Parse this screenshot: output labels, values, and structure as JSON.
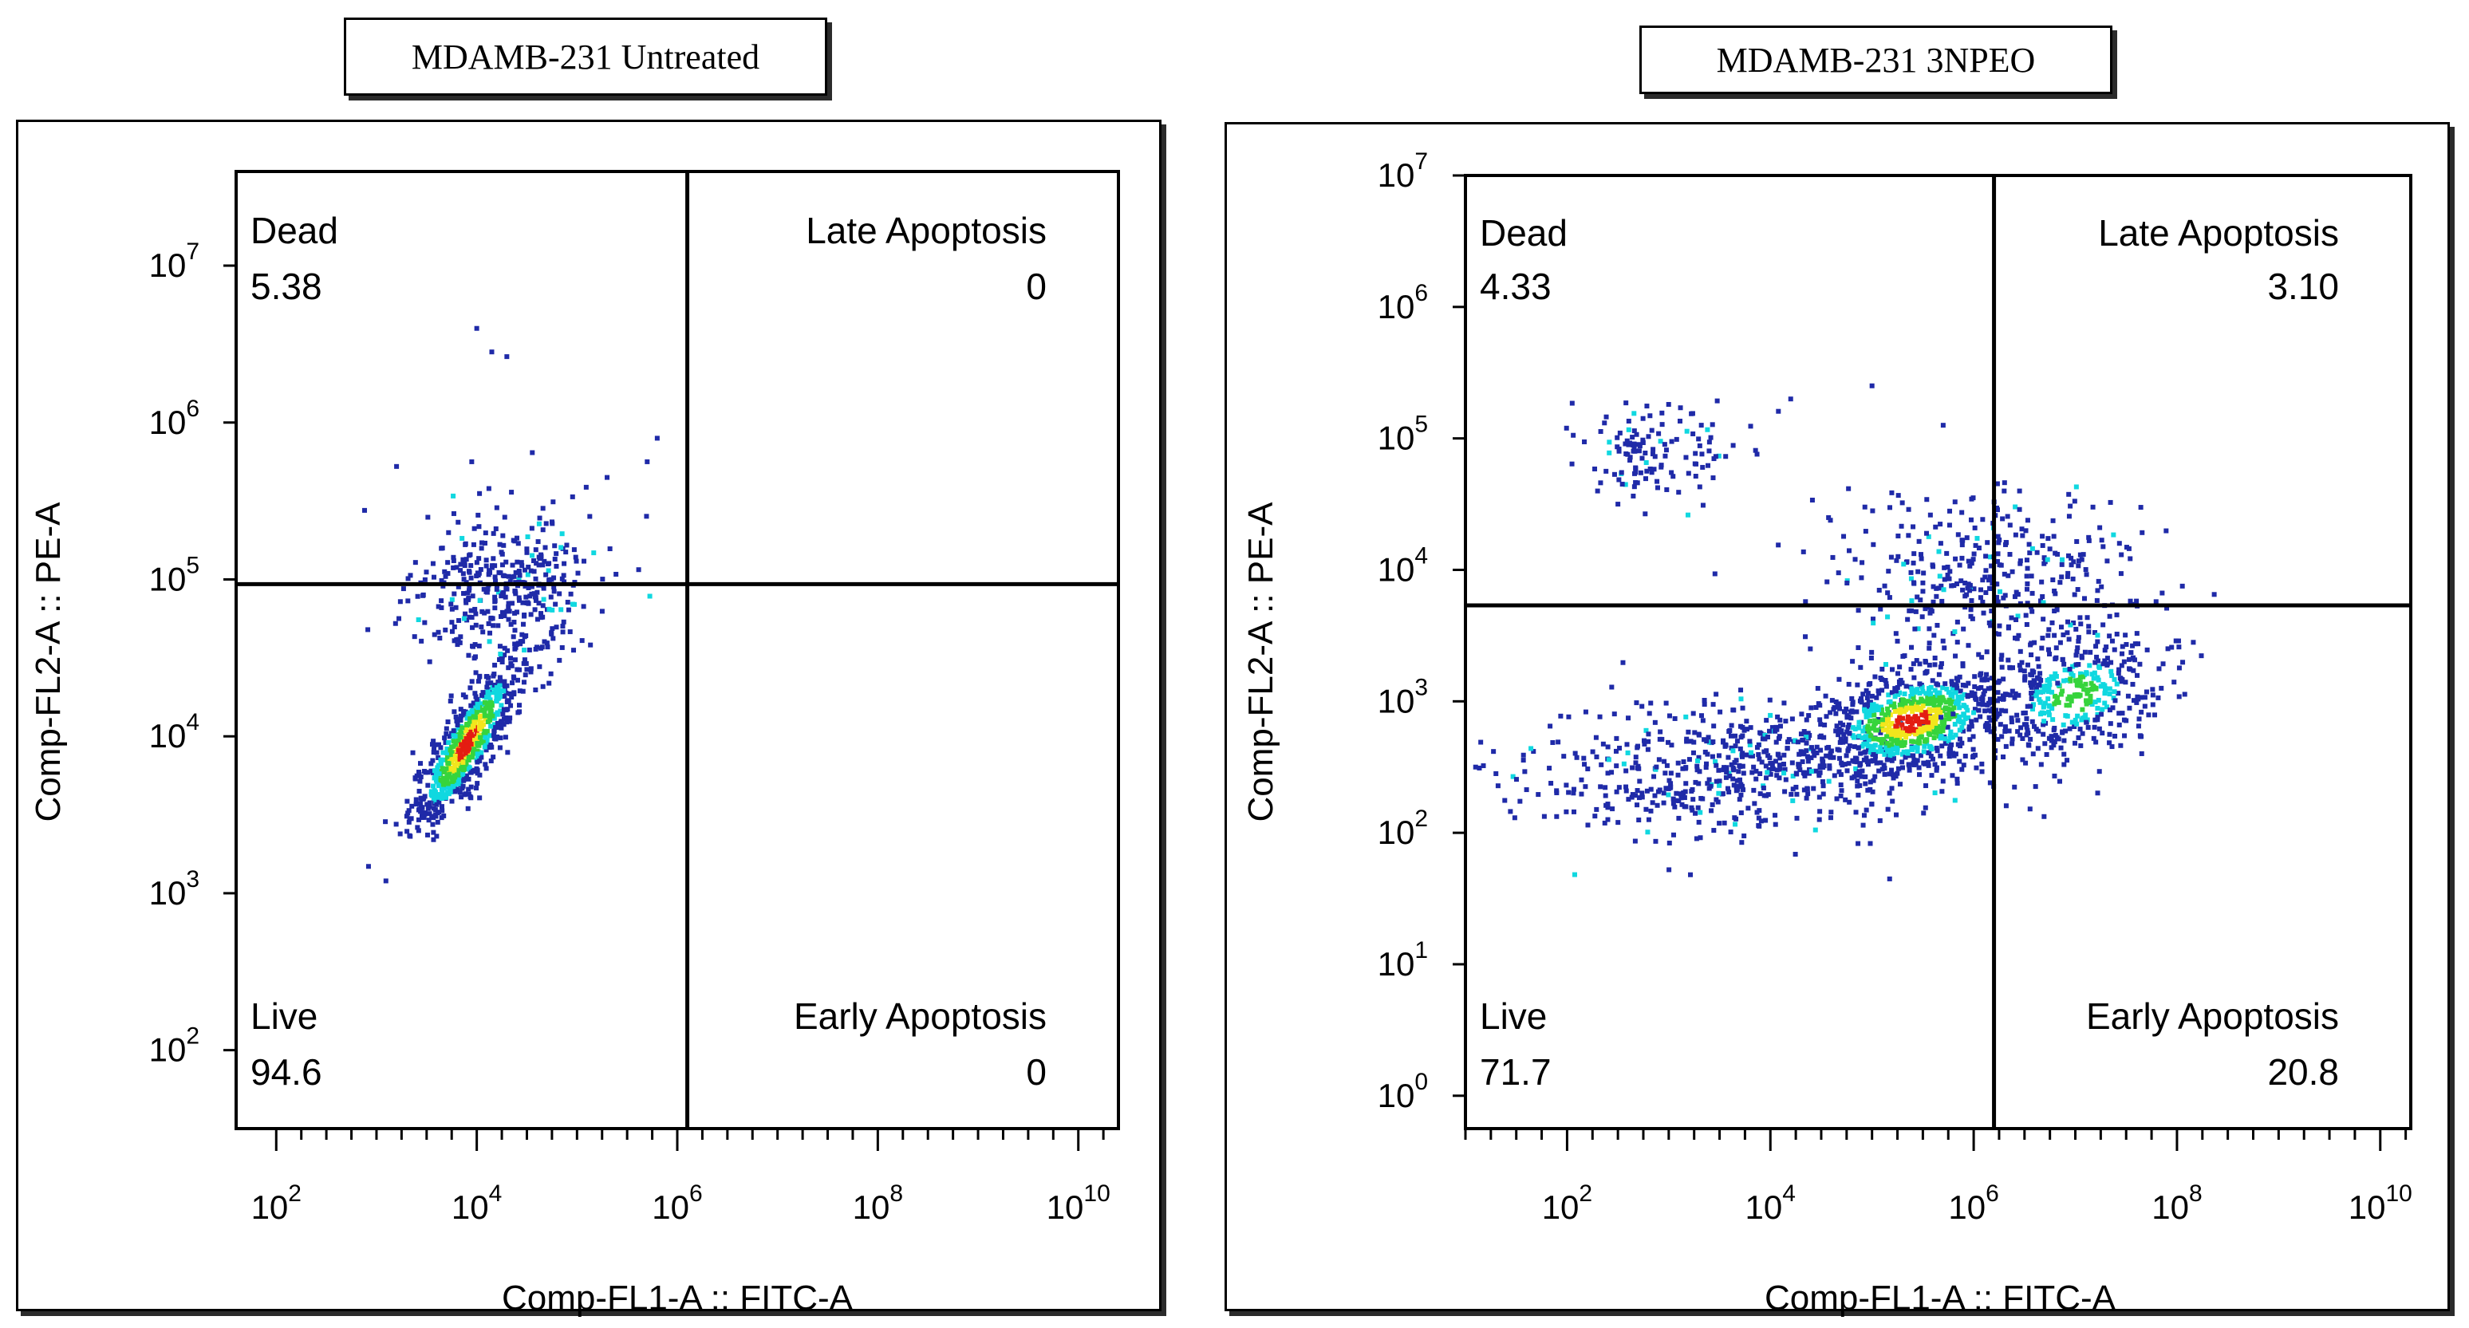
{
  "colors": {
    "axis": "#000000",
    "density_low": "#1f2aa8",
    "density_mid": "#10d8e0",
    "density_mid2": "#36d43c",
    "density_high": "#f2e61d",
    "density_peak": "#e41d12"
  },
  "chart_data": [
    {
      "type": "scatter",
      "title": "MDAMB-231 Untreated",
      "xlabel": "Comp-FL1-A :: FITC-A",
      "ylabel": "Comp-FL2-A :: PE-A",
      "x_scale": "log10",
      "y_scale": "log10",
      "xlim_exp": [
        1.6,
        10.4
      ],
      "ylim_exp": [
        1.5,
        7.6
      ],
      "x_ticks": [
        {
          "exp": 2,
          "base": "10",
          "power": "2"
        },
        {
          "exp": 4,
          "base": "10",
          "power": "4"
        },
        {
          "exp": 6,
          "base": "10",
          "power": "6"
        },
        {
          "exp": 8,
          "base": "10",
          "power": "8"
        },
        {
          "exp": 10,
          "base": "10",
          "power": "10"
        }
      ],
      "y_ticks": [
        {
          "exp": 2,
          "base": "10",
          "power": "2"
        },
        {
          "exp": 3,
          "base": "10",
          "power": "3"
        },
        {
          "exp": 4,
          "base": "10",
          "power": "4"
        },
        {
          "exp": 5,
          "base": "10",
          "power": "5"
        },
        {
          "exp": 6,
          "base": "10",
          "power": "6"
        },
        {
          "exp": 7,
          "base": "10",
          "power": "7"
        }
      ],
      "quadrant_gate": {
        "x_exp": 6.1,
        "y_exp": 4.97
      },
      "quadrants": [
        {
          "name": "Dead",
          "value": "5.38",
          "position": "top-left"
        },
        {
          "name": "Late Apoptosis",
          "value": "0",
          "position": "top-right"
        },
        {
          "name": "Live",
          "value": "94.6",
          "position": "bottom-left"
        },
        {
          "name": "Early Apoptosis",
          "value": "0",
          "position": "bottom-right"
        }
      ],
      "populations": [
        {
          "label": "live cluster",
          "cx_exp": 3.9,
          "cy_exp": 3.95,
          "sx": 0.28,
          "sy": 0.28,
          "rho": 0.85,
          "n": 700,
          "density": "high"
        },
        {
          "label": "dead spread",
          "cx_exp": 4.3,
          "cy_exp": 4.95,
          "sx": 0.45,
          "sy": 0.25,
          "rho": 0.2,
          "n": 380,
          "density": "low"
        }
      ],
      "outliers": [
        {
          "x_exp": 3.2,
          "y_exp": 5.72
        },
        {
          "x_exp": 4.0,
          "y_exp": 6.6
        },
        {
          "x_exp": 4.15,
          "y_exp": 6.45
        },
        {
          "x_exp": 4.3,
          "y_exp": 6.42
        },
        {
          "x_exp": 5.8,
          "y_exp": 5.9
        },
        {
          "x_exp": 5.7,
          "y_exp": 5.75
        },
        {
          "x_exp": 5.3,
          "y_exp": 5.65
        },
        {
          "x_exp": 3.95,
          "y_exp": 5.75
        }
      ]
    },
    {
      "type": "scatter",
      "title": "MDAMB-231 3NPEO",
      "xlabel": "Comp-FL1-A :: FITC-A",
      "ylabel": "Comp-FL2-A :: PE-A",
      "x_scale": "log10",
      "y_scale": "log10",
      "xlim_exp": [
        1.0,
        10.3
      ],
      "ylim_exp": [
        -0.25,
        7.0
      ],
      "x_ticks": [
        {
          "exp": 2,
          "base": "10",
          "power": "2"
        },
        {
          "exp": 4,
          "base": "10",
          "power": "4"
        },
        {
          "exp": 6,
          "base": "10",
          "power": "6"
        },
        {
          "exp": 8,
          "base": "10",
          "power": "8"
        },
        {
          "exp": 10,
          "base": "10",
          "power": "10"
        }
      ],
      "y_ticks": [
        {
          "exp": 0,
          "base": "10",
          "power": "0"
        },
        {
          "exp": 1,
          "base": "10",
          "power": "1"
        },
        {
          "exp": 2,
          "base": "10",
          "power": "2"
        },
        {
          "exp": 3,
          "base": "10",
          "power": "3"
        },
        {
          "exp": 4,
          "base": "10",
          "power": "4"
        },
        {
          "exp": 5,
          "base": "10",
          "power": "5"
        },
        {
          "exp": 6,
          "base": "10",
          "power": "6"
        },
        {
          "exp": 7,
          "base": "10",
          "power": "7"
        }
      ],
      "quadrant_gate": {
        "x_exp": 6.2,
        "y_exp": 3.73
      },
      "quadrants": [
        {
          "name": "Dead",
          "value": "4.33",
          "position": "top-left"
        },
        {
          "name": "Late Apoptosis",
          "value": "3.10",
          "position": "top-right"
        },
        {
          "name": "Live",
          "value": "71.7",
          "position": "bottom-left"
        },
        {
          "name": "Early Apoptosis",
          "value": "20.8",
          "position": "bottom-right"
        }
      ],
      "populations": [
        {
          "label": "live tail",
          "cx_exp": 3.8,
          "cy_exp": 2.5,
          "sx": 1.1,
          "sy": 0.25,
          "rho": 0.1,
          "n": 650,
          "density": "low"
        },
        {
          "label": "main cluster",
          "cx_exp": 5.4,
          "cy_exp": 2.85,
          "sx": 0.45,
          "sy": 0.2,
          "rho": 0.3,
          "n": 750,
          "density": "high"
        },
        {
          "label": "early apoptosis cluster",
          "cx_exp": 7.0,
          "cy_exp": 3.05,
          "sx": 0.45,
          "sy": 0.25,
          "rho": 0.3,
          "n": 420,
          "density": "mid"
        },
        {
          "label": "upper spread",
          "cx_exp": 6.1,
          "cy_exp": 3.95,
          "sx": 0.75,
          "sy": 0.35,
          "rho": 0.0,
          "n": 380,
          "density": "low"
        },
        {
          "label": "dead cluster",
          "cx_exp": 2.9,
          "cy_exp": 4.9,
          "sx": 0.4,
          "sy": 0.17,
          "rho": 0.0,
          "n": 130,
          "density": "low"
        }
      ],
      "outliers": [
        {
          "x_exp": 1.1,
          "y_exp": 2.5
        },
        {
          "x_exp": 1.3,
          "y_exp": 2.45
        },
        {
          "x_exp": 5.0,
          "y_exp": 5.4
        },
        {
          "x_exp": 4.2,
          "y_exp": 5.3
        },
        {
          "x_exp": 5.7,
          "y_exp": 5.1
        },
        {
          "x_exp": 6.3,
          "y_exp": 4.6
        },
        {
          "x_exp": 2.3,
          "y_exp": 4.6
        },
        {
          "x_exp": 2.5,
          "y_exp": 4.5
        }
      ]
    }
  ]
}
